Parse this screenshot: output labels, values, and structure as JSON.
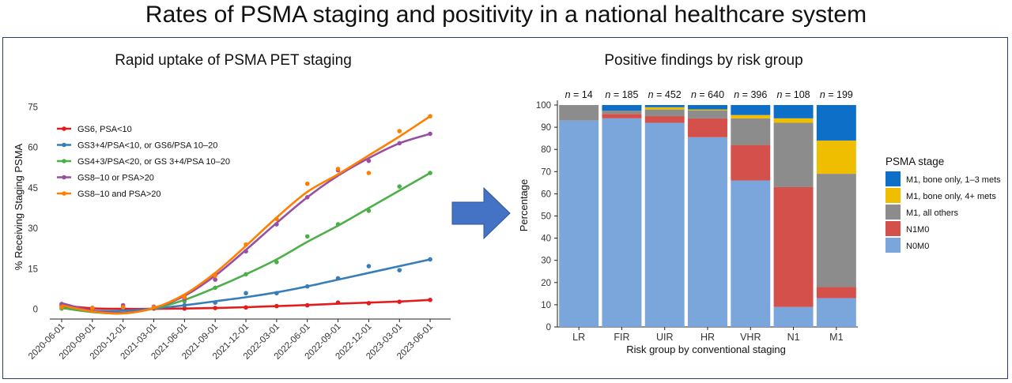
{
  "title": "Rates of PSMA staging and positivity in a national healthcare system",
  "chart_data": [
    {
      "type": "line",
      "title": "Rapid uptake of PSMA PET staging",
      "xlabel": "",
      "ylabel": "% Receiving Staging PSMA",
      "x": [
        "2020-06-01",
        "2020-09-01",
        "2020-12-01",
        "2021-03-01",
        "2021-06-01",
        "2021-09-01",
        "2021-12-01",
        "2022-03-01",
        "2022-06-01",
        "2022-09-01",
        "2022-12-01",
        "2023-03-01",
        "2023-06-01"
      ],
      "yticks": [
        0,
        15,
        30,
        45,
        60,
        75
      ],
      "ylim": [
        -3,
        78
      ],
      "legend_position": "top-left",
      "series": [
        {
          "name": "GS6, PSA<10",
          "color": "#e41a1c",
          "points": [
            1.5,
            0.5,
            0.3,
            0.3,
            0.3,
            0.5,
            0.7,
            1.2,
            1.5,
            2.5,
            2.3,
            2.8,
            3.5
          ],
          "fit": [
            1.5,
            0.4,
            0.2,
            0.2,
            0.3,
            0.5,
            0.8,
            1.2,
            1.6,
            2.1,
            2.5,
            2.9,
            3.5
          ]
        },
        {
          "name": "GS3+4/PSA<10, or GS6/PSA 10–20",
          "color": "#377eb8",
          "points": [
            0.5,
            0.3,
            0.6,
            0.6,
            1.5,
            2.5,
            6.0,
            6.0,
            8.5,
            11.5,
            16.0,
            14.5,
            18.5
          ],
          "fit": [
            1.0,
            -0.5,
            -0.5,
            0.3,
            1.5,
            3.0,
            4.5,
            6.3,
            8.5,
            11.0,
            13.5,
            16.0,
            18.5
          ]
        },
        {
          "name": "GS4+3/PSA<20, or GS 3+4/PSA 10–20",
          "color": "#4daf4a",
          "points": [
            0.3,
            0.5,
            1.0,
            0.8,
            3.0,
            8.0,
            13.0,
            17.5,
            27.0,
            31.5,
            36.5,
            45.5,
            50.5
          ],
          "fit": [
            0.5,
            -1.0,
            -1.5,
            0.3,
            3.5,
            8.0,
            13.0,
            18.5,
            25.0,
            31.0,
            37.5,
            44.0,
            50.5
          ]
        },
        {
          "name": "GS8–10 or PSA>20",
          "color": "#984ea3",
          "points": [
            2.0,
            0.5,
            1.5,
            1.0,
            4.0,
            11.0,
            21.5,
            31.5,
            41.5,
            51.5,
            55.0,
            61.5,
            65.0
          ],
          "fit": [
            2.3,
            -0.5,
            -1.3,
            0.5,
            5.0,
            12.5,
            22.0,
            32.0,
            41.5,
            49.5,
            56.0,
            61.5,
            65.0
          ]
        },
        {
          "name": "GS8–10 and PSA>20",
          "color": "#ff7f00",
          "points": [
            0.8,
            0.5,
            0.8,
            0.8,
            4.5,
            12.5,
            24.0,
            33.5,
            46.5,
            52.0,
            50.5,
            66.0,
            71.5
          ],
          "fit": [
            1.5,
            -0.8,
            -1.5,
            0.5,
            5.5,
            13.5,
            23.5,
            34.0,
            43.5,
            50.0,
            57.0,
            64.0,
            71.5
          ]
        }
      ]
    },
    {
      "type": "bar",
      "stacked": true,
      "title": "Positive findings by risk group",
      "xlabel": "Risk group by conventional staging",
      "ylabel": "Percentage",
      "ylim": [
        0,
        100
      ],
      "yticks": [
        0,
        10,
        20,
        30,
        40,
        50,
        60,
        70,
        80,
        90,
        100
      ],
      "categories": [
        "LR",
        "FIR",
        "UIR",
        "HR",
        "VHR",
        "N1",
        "M1"
      ],
      "n_label": "n",
      "n_values": [
        "= 14",
        "= 185",
        "= 452",
        "= 640",
        "= 396",
        "= 108",
        "= 199"
      ],
      "legend_title": "PSMA stage",
      "legend_position": "right",
      "series": [
        {
          "name": "N0M0",
          "color": "#7aa6dc",
          "values": [
            93,
            94,
            92,
            85.5,
            66,
            9,
            13
          ]
        },
        {
          "name": "N1M0",
          "color": "#d4514b",
          "values": [
            0,
            2,
            3,
            8.5,
            16,
            54,
            5
          ]
        },
        {
          "name": "M1, all others",
          "color": "#8c8c8c",
          "values": [
            7,
            1.5,
            3,
            3.5,
            12,
            29,
            51
          ]
        },
        {
          "name": "M1, bone only, 4+ mets",
          "color": "#f0be00",
          "values": [
            0,
            0,
            1,
            0.5,
            1.5,
            2,
            15
          ]
        },
        {
          "name": "M1, bone only, 1–3 mets",
          "color": "#0e6fc8",
          "values": [
            0,
            2.5,
            1,
            2,
            4.5,
            6,
            16
          ]
        }
      ]
    }
  ]
}
